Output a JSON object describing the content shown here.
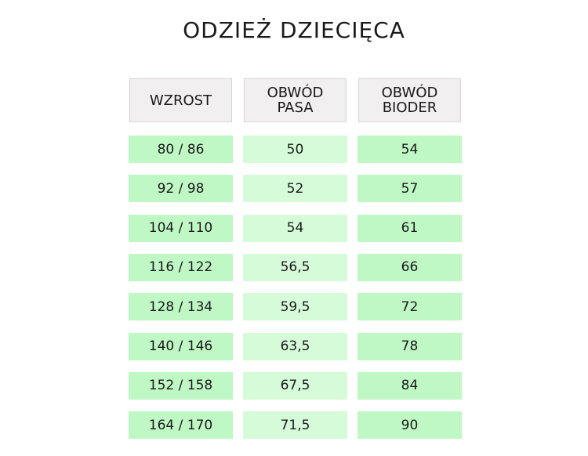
{
  "title": "ODZIEŻ DZIECIĘCA",
  "headers": [
    "WZROST",
    "OBWÓD\nPASA",
    "OBWÓD\nBIODER"
  ],
  "rows": [
    [
      "80 / 86",
      "50",
      "54"
    ],
    [
      "92 / 98",
      "52",
      "57"
    ],
    [
      "104 / 110",
      "54",
      "61"
    ],
    [
      "116 / 122",
      "56,5",
      "66"
    ],
    [
      "128 / 134",
      "59,5",
      "72"
    ],
    [
      "140 / 146",
      "63,5",
      "78"
    ],
    [
      "152 / 158",
      "67,5",
      "84"
    ],
    [
      "164 / 170",
      "71,5",
      "90"
    ]
  ],
  "colors": {
    "header_bg": "#f1efef",
    "cell_green": "#bff7c5",
    "cell_light_green": "#d5fbd9"
  }
}
